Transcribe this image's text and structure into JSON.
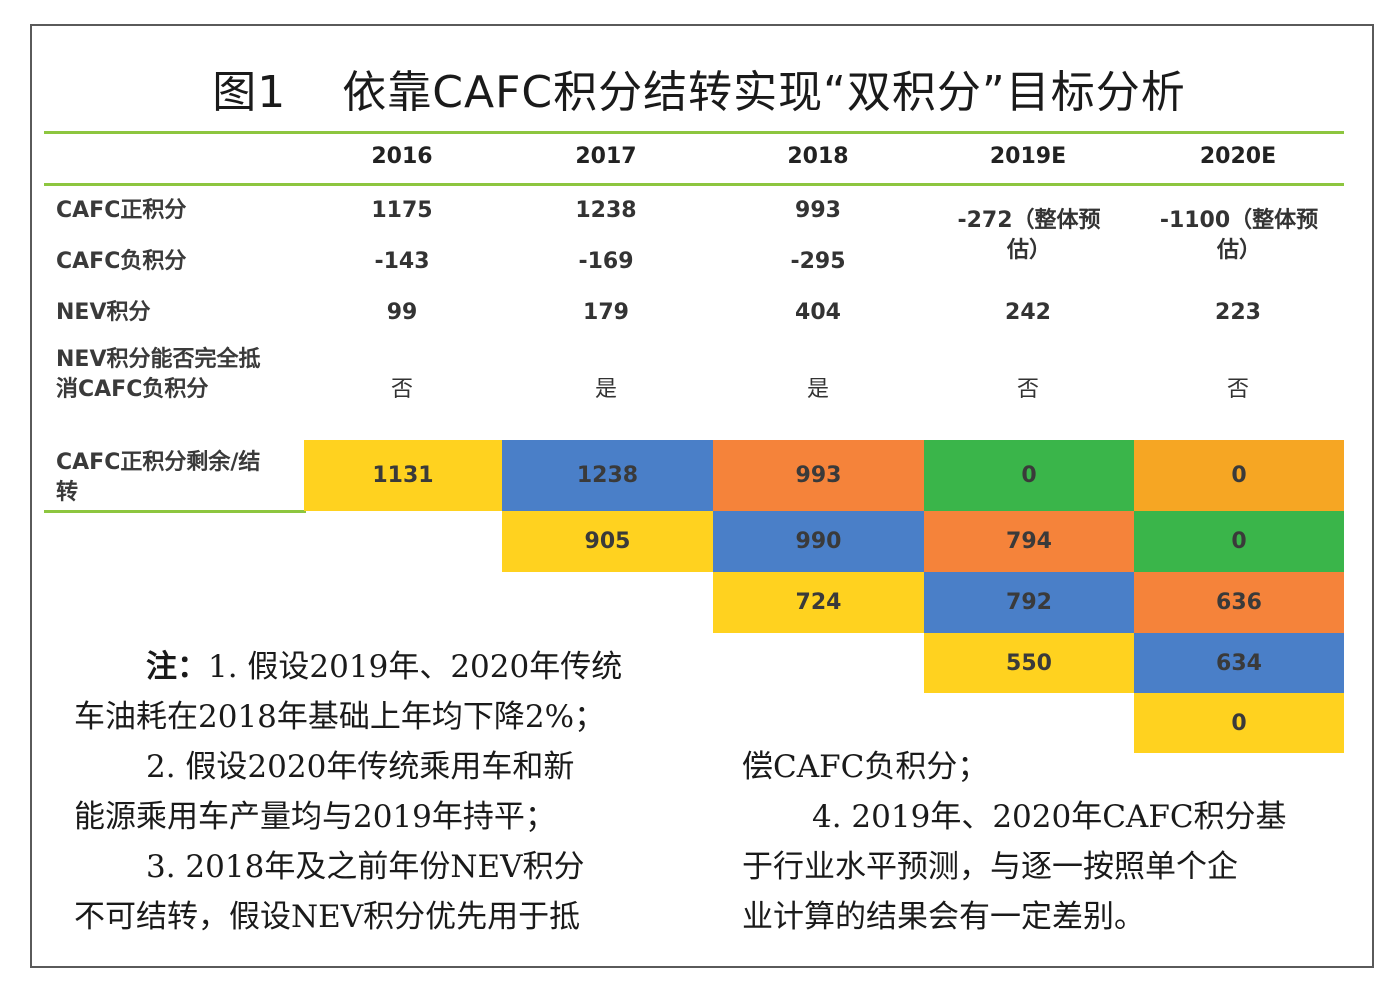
{
  "title": {
    "figure": "图1",
    "text": "依靠CAFC积分结转实现“双积分”目标分析"
  },
  "table": {
    "years": [
      "2016",
      "2017",
      "2018",
      "2019E",
      "2020E"
    ],
    "rows": {
      "positive": {
        "label": "CAFC正积分",
        "values": [
          "1175",
          "1238",
          "993"
        ]
      },
      "negative": {
        "label": "CAFC负积分",
        "values": [
          "-143",
          "-169",
          "-295"
        ]
      },
      "estimates": [
        "-272（整体预估）",
        "-1100（整体预估）"
      ],
      "nev": {
        "label": "NEV积分",
        "values": [
          "99",
          "179",
          "404",
          "242",
          "223"
        ]
      },
      "offset": {
        "label": "NEV积分能否完全抵消CAFC负积分",
        "values": [
          "否",
          "是",
          "是",
          "否",
          "否"
        ]
      },
      "remain": {
        "label": "CAFC正积分剩余/结转"
      }
    },
    "carry": [
      [
        "1131",
        "1238",
        "993",
        "0",
        "0"
      ],
      [
        "905",
        "990",
        "794",
        "0"
      ],
      [
        "724",
        "792",
        "636"
      ],
      [
        "550",
        "634"
      ],
      [
        "0"
      ]
    ]
  },
  "colors": {
    "yellow": "#ffd21f",
    "blue": "#4a7fc8",
    "orange": "#f5833a",
    "green": "#3ab54a",
    "amber": "#f6a623",
    "rule": "#8dc63f"
  },
  "notes": {
    "prefix": "注：",
    "left": [
      "1. 假设2019年、2020年传统",
      "车油耗在2018年基础上年均下降2%；",
      "2. 假设2020年传统乘用车和新",
      "能源乘用车产量均与2019年持平；",
      "3. 2018年及之前年份NEV积分",
      "不可结转，假设NEV积分优先用于抵"
    ],
    "right": [
      "偿CAFC负积分；",
      "4. 2019年、2020年CAFC积分基",
      "于行业水平预测，与逐一按照单个企",
      "业计算的结果会有一定差别。"
    ]
  }
}
